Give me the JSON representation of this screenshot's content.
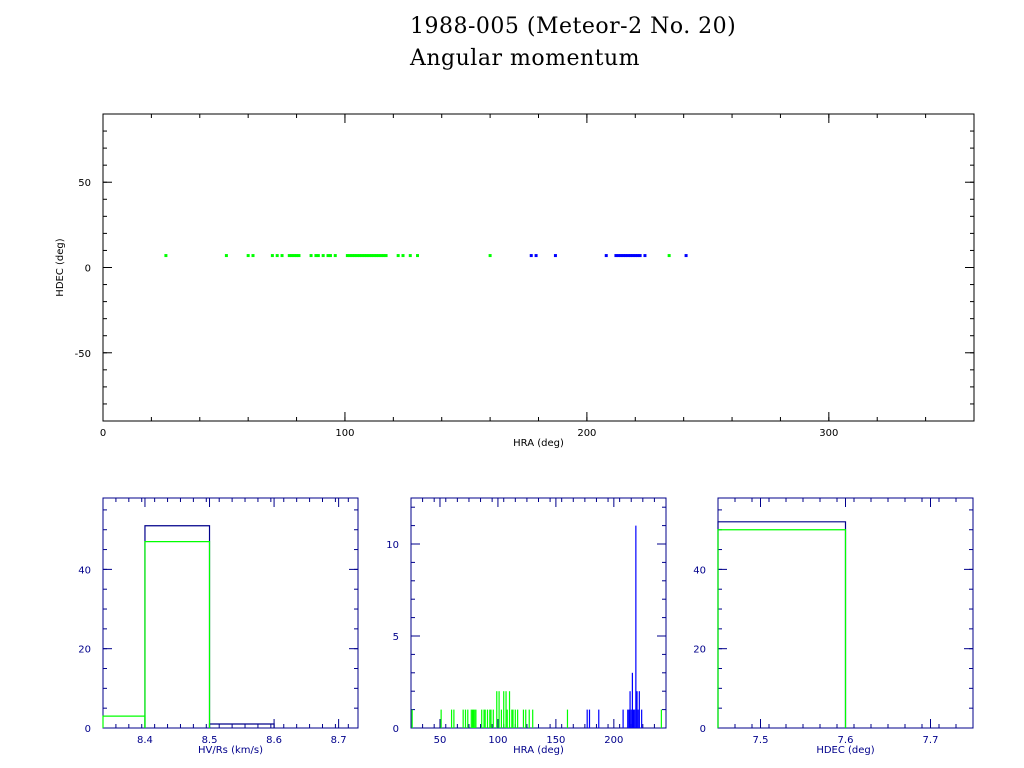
{
  "title": "1988-005 (Meteor-2 No. 20)",
  "subtitle": "Angular momentum",
  "colors": {
    "axis_main": "#000000",
    "axis_hist": "#00008b",
    "series_green": "#00ff00",
    "series_blue": "#0000ff"
  },
  "chart_data": [
    {
      "type": "scatter",
      "xlabel": "HRA (deg)",
      "ylabel": "HDEC (deg)",
      "xlim": [
        0,
        360
      ],
      "ylim": [
        -90,
        90
      ],
      "xticks": [
        0,
        100,
        200,
        300
      ],
      "yticks": [
        -50,
        0,
        50
      ],
      "series": [
        {
          "color": "#00ff00",
          "y": 7,
          "x": [
            26,
            51,
            60,
            62,
            70,
            72,
            74,
            77,
            78,
            79,
            80,
            81,
            86,
            88,
            89,
            91,
            93,
            94,
            96,
            101,
            102,
            103,
            104,
            105,
            106,
            107,
            108,
            109,
            110,
            111,
            112,
            113,
            114,
            115,
            116,
            117,
            122,
            124,
            127,
            130,
            160,
            234
          ]
        },
        {
          "color": "#0000ff",
          "y": 7,
          "x": [
            177,
            179,
            187,
            208,
            212,
            213,
            214,
            215,
            216,
            217,
            218,
            219,
            220,
            221,
            222,
            224,
            241
          ]
        }
      ]
    },
    {
      "type": "histogram",
      "xlabel": "HV/Rs (km/s)",
      "xlim": [
        8.335,
        8.73
      ],
      "ylim": [
        0,
        58
      ],
      "xticks": [
        8.4,
        8.5,
        8.6,
        8.7
      ],
      "yticks": [
        0,
        20,
        40
      ],
      "series": [
        {
          "color": "#00008b",
          "bins": [
            [
              8.4,
              8.5,
              51
            ],
            [
              8.5,
              8.6,
              1
            ]
          ]
        },
        {
          "color": "#00ff00",
          "bins": [
            [
              8.335,
              8.4,
              3
            ],
            [
              8.4,
              8.5,
              47
            ]
          ]
        }
      ]
    },
    {
      "type": "histogram",
      "xlabel": "HRA (deg)",
      "xlim": [
        25,
        245
      ],
      "ylim": [
        0,
        12.5
      ],
      "xticks": [
        50,
        100,
        150,
        200
      ],
      "yticks": [
        0,
        5,
        10
      ],
      "series": [
        {
          "color": "#00ff00",
          "x": [
            26,
            51,
            60,
            62,
            70,
            72,
            74,
            77,
            78,
            79,
            80,
            81,
            86,
            88,
            89,
            91,
            93,
            94,
            96,
            99,
            101,
            103,
            105,
            107,
            108,
            110,
            112,
            113,
            115,
            117,
            122,
            124,
            127,
            130,
            160,
            241
          ],
          "counts": [
            1,
            1,
            1,
            1,
            1,
            1,
            1,
            1,
            1,
            1,
            1,
            1,
            1,
            1,
            1,
            1,
            1,
            1,
            1,
            2,
            2,
            1,
            2,
            2,
            1,
            2,
            1,
            1,
            1,
            1,
            1,
            1,
            1,
            1,
            1,
            1
          ]
        },
        {
          "color": "#0000ff",
          "x": [
            177,
            179,
            187,
            208,
            212,
            213,
            214,
            215,
            216,
            217,
            218,
            219,
            220,
            221,
            222,
            224
          ],
          "counts": [
            1,
            1,
            1,
            1,
            1,
            1,
            2,
            1,
            3,
            1,
            1,
            11,
            2,
            1,
            2,
            1
          ]
        }
      ]
    },
    {
      "type": "histogram",
      "xlabel": "HDEC (deg)",
      "xlim": [
        7.45,
        7.75
      ],
      "ylim": [
        0,
        58
      ],
      "xticks": [
        7.5,
        7.6,
        7.7
      ],
      "yticks": [
        0,
        20,
        40
      ],
      "series": [
        {
          "color": "#00008b",
          "bins": [
            [
              7.45,
              7.6,
              52
            ]
          ]
        },
        {
          "color": "#00ff00",
          "bins": [
            [
              7.45,
              7.6,
              50
            ]
          ]
        }
      ]
    }
  ]
}
